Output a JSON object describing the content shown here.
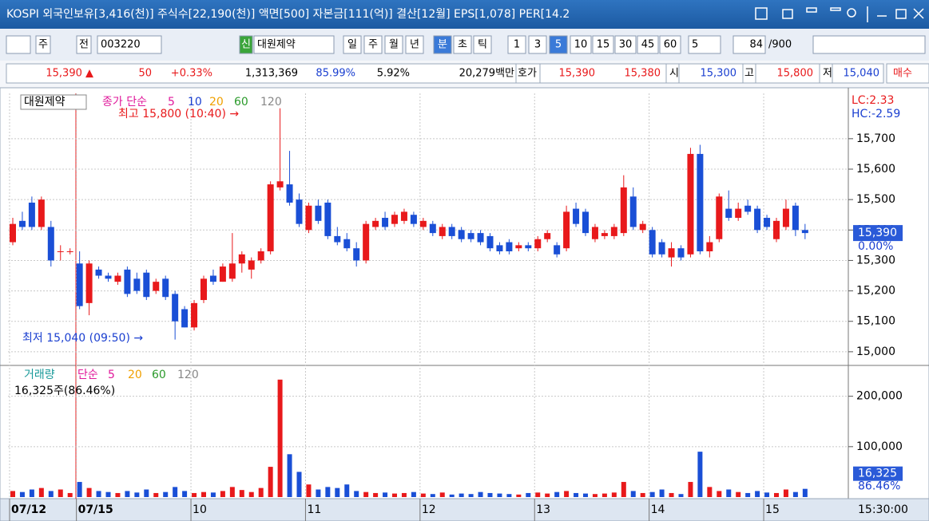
{
  "title_bar": {
    "text": "KOSPI 외국인보유[3,416(천)] 주식수[22,190(천)] 액면[500] 자본금[111(억)] 결산[12월] EPS[1,078] PER[14.2"
  },
  "toolbar": {
    "items": [
      "주",
      "전",
      "003220",
      "신",
      "대원제약",
      "일",
      "주",
      "월",
      "년",
      "분",
      "초",
      "틱",
      "1",
      "3",
      "5",
      "10",
      "15",
      "30",
      "45",
      "60",
      "5",
      "84",
      "/900"
    ]
  },
  "quote_bar": {
    "items": [
      "15,390 ▲",
      "50",
      "+0.33%",
      "1,313,369",
      "85.99%",
      "5.92%",
      "20,279백만",
      "호가",
      "15,390",
      "15,380",
      "시",
      "15,300",
      "고",
      "15,800",
      "저",
      "15,040",
      "매수"
    ]
  },
  "chart_data": [
    {
      "type": "candlestick",
      "title": "대원제약",
      "legend_label": "종가 단순",
      "legend": [
        {
          "name": "5",
          "color": "#e0189b"
        },
        {
          "name": "10",
          "color": "#1a3fd0"
        },
        {
          "name": "20",
          "color": "#f0a000"
        },
        {
          "name": "60",
          "color": "#2a9a2a"
        },
        {
          "name": "120",
          "color": "#888888"
        }
      ],
      "open": [
        15360,
        15430,
        15490,
        15410,
        15410,
        15330,
        15330,
        15290,
        15160,
        15270,
        15250,
        15230,
        15270,
        15240,
        15260,
        15200,
        15240,
        15190,
        15140,
        15080,
        15170,
        15250,
        15230,
        15240,
        15290,
        15270,
        15300,
        15330,
        15540,
        15550,
        15500,
        15400,
        15480,
        15490,
        15380,
        15370,
        15340,
        15300,
        15410,
        15440,
        15420,
        15430,
        15450,
        15410,
        15420,
        15380,
        15410,
        15400,
        15390,
        15390,
        15380,
        15350,
        15360,
        15340,
        15350,
        15340,
        15370,
        15350,
        15340,
        15470,
        15460,
        15370,
        15380,
        15380,
        15390,
        15510,
        15400,
        15400,
        15360,
        15310,
        15340,
        15320,
        15650,
        15330,
        15370,
        15470,
        15440,
        15480,
        15470,
        15440,
        15370,
        15410,
        15480,
        15400
      ],
      "high": [
        15440,
        15460,
        15510,
        15510,
        15430,
        15350,
        15340,
        15330,
        15300,
        15280,
        15260,
        15260,
        15280,
        15260,
        15270,
        15240,
        15250,
        15200,
        15150,
        15170,
        15250,
        15270,
        15290,
        15390,
        15330,
        15310,
        15340,
        15560,
        15800,
        15660,
        15520,
        15490,
        15500,
        15500,
        15410,
        15390,
        15360,
        15430,
        15440,
        15460,
        15460,
        15470,
        15460,
        15440,
        15430,
        15420,
        15420,
        15410,
        15400,
        15400,
        15390,
        15360,
        15370,
        15360,
        15360,
        15380,
        15400,
        15360,
        15480,
        15490,
        15470,
        15420,
        15400,
        15420,
        15580,
        15540,
        15430,
        15410,
        15370,
        15360,
        15350,
        15670,
        15680,
        15380,
        15520,
        15530,
        15490,
        15500,
        15480,
        15450,
        15440,
        15500,
        15490,
        15420
      ],
      "low": [
        15350,
        15400,
        15400,
        15400,
        15280,
        15300,
        15320,
        15140,
        15120,
        15240,
        15230,
        15220,
        15180,
        15190,
        15170,
        15190,
        15170,
        15040,
        15080,
        15070,
        15160,
        15220,
        15230,
        15230,
        15260,
        15240,
        15290,
        15320,
        15530,
        15480,
        15410,
        15390,
        15420,
        15370,
        15350,
        15330,
        15280,
        15290,
        15400,
        15400,
        15410,
        15420,
        15410,
        15400,
        15380,
        15370,
        15370,
        15360,
        15360,
        15350,
        15330,
        15320,
        15320,
        15330,
        15330,
        15330,
        15360,
        15310,
        15330,
        15410,
        15380,
        15360,
        15370,
        15370,
        15380,
        15400,
        15390,
        15310,
        15310,
        15280,
        15300,
        15310,
        15320,
        15310,
        15360,
        15430,
        15430,
        15450,
        15390,
        15400,
        15360,
        15400,
        15380,
        15370
      ],
      "close": [
        15420,
        15410,
        15410,
        15500,
        15300,
        15330,
        15330,
        15150,
        15290,
        15250,
        15240,
        15250,
        15190,
        15200,
        15180,
        15230,
        15180,
        15100,
        15080,
        15160,
        15240,
        15230,
        15280,
        15290,
        15320,
        15300,
        15330,
        15550,
        15560,
        15490,
        15420,
        15480,
        15430,
        15380,
        15360,
        15340,
        15300,
        15420,
        15430,
        15410,
        15450,
        15460,
        15420,
        15430,
        15390,
        15410,
        15380,
        15370,
        15370,
        15360,
        15340,
        15330,
        15330,
        15350,
        15340,
        15370,
        15390,
        15320,
        15460,
        15420,
        15390,
        15410,
        15390,
        15410,
        15540,
        15410,
        15420,
        15320,
        15320,
        15340,
        15310,
        15650,
        15330,
        15360,
        15510,
        15440,
        15470,
        15460,
        15400,
        15410,
        15430,
        15470,
        15400,
        15390
      ],
      "up_color": "#e8191b",
      "down_color": "#1a4fd6",
      "ylim": [
        14963,
        15849
      ],
      "yticks": [
        {
          "value": 15000,
          "label": "15,000"
        },
        {
          "value": 15100,
          "label": "15,100"
        },
        {
          "value": 15200,
          "label": "15,200"
        },
        {
          "value": 15300,
          "label": "15,300"
        },
        {
          "value": 15400,
          "label": "15,400"
        },
        {
          "value": 15500,
          "label": "15,500"
        },
        {
          "value": 15600,
          "label": "15,600"
        },
        {
          "value": 15700,
          "label": "15,700"
        }
      ],
      "annotations": [
        {
          "text": "최고 15,800 (10:40) →",
          "color": "#e8191b"
        },
        {
          "text": "최저 15,040 (09:50) →",
          "color": "#1a3fd0"
        }
      ],
      "side_labels": [
        "LC:2.33",
        "HC:-2.59"
      ],
      "last_price": {
        "value": 15390,
        "label": "15,390"
      },
      "change_label": "0.00%"
    },
    {
      "type": "bar",
      "legend_label": "거래량",
      "legend": [
        {
          "name": "단순",
          "color": "#e0189b"
        },
        {
          "name": "5",
          "color": "#e0189b"
        },
        {
          "name": "20",
          "color": "#f0a000"
        },
        {
          "name": "60",
          "color": "#2a9a2a"
        },
        {
          "name": "120",
          "color": "#888888"
        }
      ],
      "info": "16,325주(86.46%)",
      "categories": [
        "07/12",
        null,
        null,
        null,
        null,
        null,
        null,
        "07/15",
        null,
        null,
        null,
        null,
        null,
        null,
        null,
        null,
        null,
        null,
        null,
        "10",
        null,
        null,
        null,
        null,
        null,
        null,
        null,
        null,
        null,
        null,
        null,
        "11",
        null,
        null,
        null,
        null,
        null,
        null,
        null,
        null,
        null,
        null,
        null,
        "12",
        null,
        null,
        null,
        null,
        null,
        null,
        null,
        null,
        null,
        null,
        null,
        "13",
        null,
        null,
        null,
        null,
        null,
        null,
        null,
        null,
        null,
        null,
        null,
        "14",
        null,
        null,
        null,
        null,
        null,
        null,
        null,
        null,
        null,
        null,
        null,
        "15",
        null,
        null,
        null,
        null
      ],
      "values": [
        12000,
        10000,
        15000,
        18000,
        12000,
        15000,
        8000,
        30000,
        18000,
        12000,
        10000,
        8000,
        12000,
        9000,
        15000,
        8000,
        10000,
        20000,
        12000,
        8000,
        10000,
        9000,
        12000,
        20000,
        14000,
        10000,
        18000,
        60000,
        233000,
        85000,
        50000,
        25000,
        15000,
        20000,
        18000,
        25000,
        12000,
        10000,
        8000,
        9000,
        7000,
        8000,
        10000,
        7000,
        6000,
        9000,
        5000,
        7000,
        6000,
        10000,
        8000,
        7000,
        6000,
        5000,
        8000,
        9000,
        7000,
        10000,
        12000,
        8000,
        7000,
        6000,
        7000,
        9000,
        30000,
        12000,
        8000,
        10000,
        15000,
        8000,
        6000,
        30000,
        90000,
        20000,
        12000,
        15000,
        10000,
        8000,
        12000,
        9000,
        8000,
        15000,
        10000,
        16325
      ],
      "ylim": [
        0,
        258000
      ],
      "yticks": [
        {
          "value": 100000,
          "label": "100,000"
        },
        {
          "value": 200000,
          "label": "200,000"
        }
      ],
      "last_value": {
        "value": 16325,
        "label": "16,325"
      },
      "ratio_label": "86.46%",
      "time_label": "15:30:00"
    }
  ]
}
